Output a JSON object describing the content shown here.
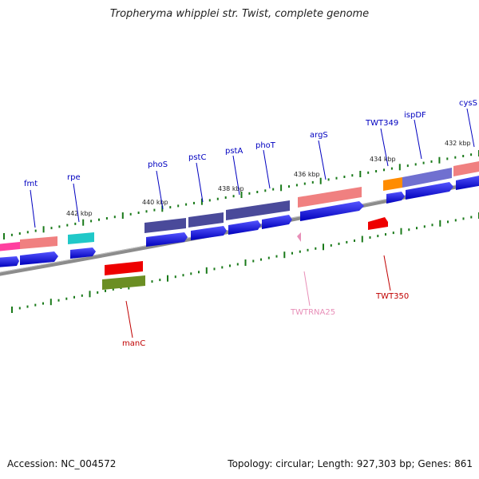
{
  "title": "Tropheryma whipplei str. Twist, complete genome",
  "footer": {
    "accession": "Accession: NC_004572",
    "summary": "Topology: circular; Length: 927,303 bp; Genes: 861"
  },
  "colors": {
    "backbone": "#8c8c8c",
    "tick": "#1a7a1a",
    "label_blue": "#0000c0",
    "label_red": "#c00000",
    "label_pink": "#e88fb8",
    "cds_blue": "#0000ee"
  },
  "kbp_marks": [
    "442 kbp",
    "440 kbp",
    "438 kbp",
    "436 kbp",
    "434 kbp",
    "432 kbp"
  ],
  "genes_top": [
    {
      "name": "fmt",
      "color": "#f08080"
    },
    {
      "name": "rpe",
      "color": "#20c8c8"
    },
    {
      "name": "phoS",
      "color": "#4a4a9a"
    },
    {
      "name": "pstC",
      "color": "#4a4a9a"
    },
    {
      "name": "pstA",
      "color": "#4a4a9a"
    },
    {
      "name": "phoT",
      "color": "#4a4a9a"
    },
    {
      "name": "argS",
      "color": "#f08080"
    },
    {
      "name": "TWT349",
      "color": "#ff8c00"
    },
    {
      "name": "ispDF",
      "color": "#7070d0"
    },
    {
      "name": "cysS",
      "color": "#f08080"
    }
  ],
  "genes_bottom": [
    {
      "name": "manC",
      "color": "#6b8e23"
    },
    {
      "name": "TWTRNA25",
      "color": "#e88fb8"
    },
    {
      "name": "TWT350",
      "color": "#ee0000"
    }
  ]
}
